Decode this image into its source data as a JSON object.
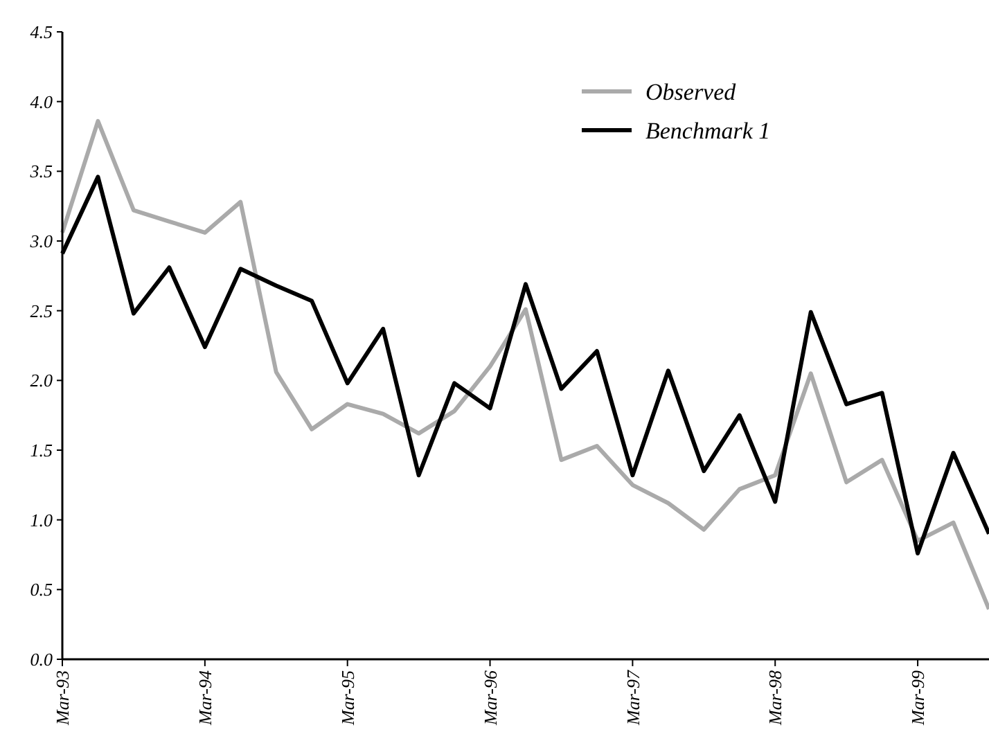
{
  "chart_data": {
    "type": "line",
    "categories": [
      "Mar-93",
      null,
      null,
      null,
      "Mar-94",
      null,
      null,
      null,
      "Mar-95",
      null,
      null,
      null,
      "Mar-96",
      null,
      null,
      null,
      "Mar-97",
      null,
      null,
      null,
      "Mar-98",
      null,
      null,
      null,
      "Mar-99",
      null,
      null
    ],
    "series": [
      {
        "name": "Observed",
        "color": "#aaaaaa",
        "values": [
          3.06,
          3.86,
          3.22,
          3.14,
          3.06,
          3.28,
          2.06,
          1.65,
          1.83,
          1.76,
          1.62,
          1.78,
          2.1,
          2.51,
          1.43,
          1.53,
          1.25,
          1.12,
          0.93,
          1.22,
          1.32,
          2.05,
          1.27,
          1.43,
          0.85,
          0.98,
          0.36
        ]
      },
      {
        "name": "Benchmark 1",
        "color": "#000000",
        "values": [
          2.91,
          3.46,
          2.48,
          2.81,
          2.24,
          2.8,
          2.68,
          2.57,
          1.98,
          2.37,
          1.32,
          1.98,
          1.8,
          2.69,
          1.94,
          2.21,
          1.32,
          2.07,
          1.35,
          1.75,
          1.13,
          2.49,
          1.83,
          1.91,
          0.76,
          1.48,
          0.9
        ]
      }
    ],
    "ylim": [
      0,
      4.5
    ],
    "yticks": [
      {
        "value": 0,
        "label": "0.0"
      },
      {
        "value": 0.5,
        "label": "0.5"
      },
      {
        "value": 1,
        "label": "1.0"
      },
      {
        "value": 1.5,
        "label": "1.5"
      },
      {
        "value": 2,
        "label": "2.0"
      },
      {
        "value": 2.5,
        "label": "2.5"
      },
      {
        "value": 3,
        "label": "3.0"
      },
      {
        "value": 3.5,
        "label": "3.5"
      },
      {
        "value": 4,
        "label": "4.0"
      },
      {
        "value": 4.5,
        "label": "4.5"
      }
    ],
    "grid": false,
    "legend": "top right",
    "marker": "none",
    "line_style": "solid"
  }
}
